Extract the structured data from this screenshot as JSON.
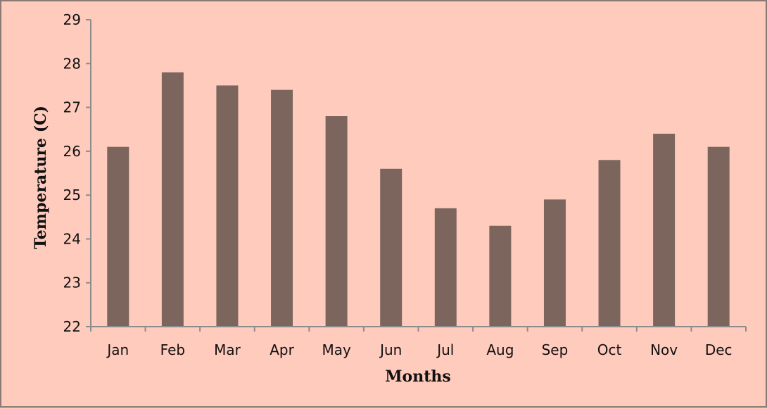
{
  "chart_data": {
    "type": "bar",
    "title": "",
    "xlabel": "Months",
    "ylabel": "Temperature (C)",
    "categories": [
      "Jan",
      "Feb",
      "Mar",
      "Apr",
      "May",
      "Jun",
      "Jul",
      "Aug",
      "Sep",
      "Oct",
      "Nov",
      "Dec"
    ],
    "values": [
      26.1,
      27.8,
      27.5,
      27.4,
      26.8,
      25.6,
      24.7,
      24.3,
      24.9,
      25.8,
      26.4,
      26.1
    ],
    "ylim": [
      22,
      29
    ],
    "yticks": [
      22,
      23,
      24,
      25,
      26,
      27,
      28,
      29
    ],
    "grid": false,
    "legend": "none",
    "bar_color": "#7b655c",
    "background_color": "#ffcbbd"
  }
}
